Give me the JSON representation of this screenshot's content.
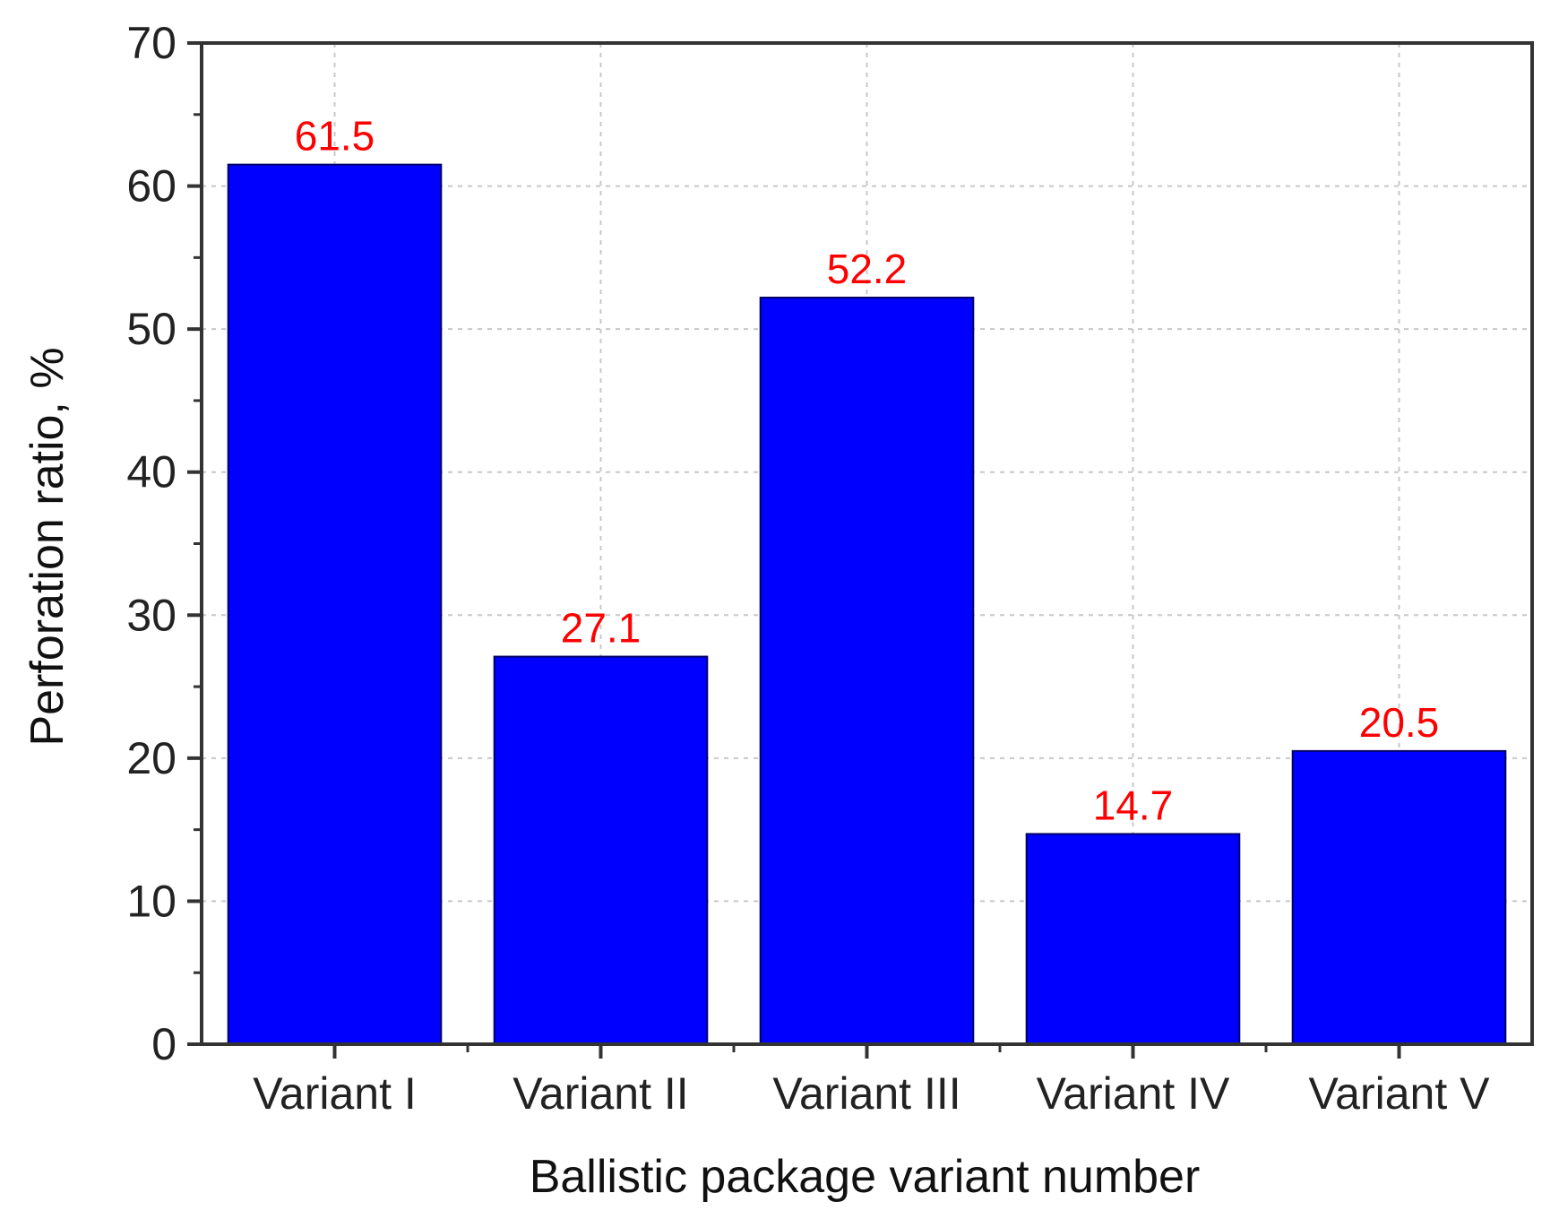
{
  "chart_data": {
    "type": "bar",
    "title": "",
    "xlabel": "Ballistic package variant number",
    "ylabel": "Perforation ratio, %",
    "categories": [
      "Variant I",
      "Variant II",
      "Variant III",
      "Variant IV",
      "Variant V"
    ],
    "values": [
      61.5,
      27.1,
      52.2,
      14.7,
      20.5
    ],
    "value_labels": [
      "61.5",
      "27.1",
      "52.2",
      "14.7",
      "20.5"
    ],
    "ylim": [
      0,
      70
    ],
    "yticks": [
      0,
      10,
      20,
      30,
      40,
      50,
      60,
      70
    ],
    "ytick_labels": [
      "0",
      "10",
      "20",
      "30",
      "40",
      "50",
      "60",
      "70"
    ],
    "grid": true,
    "legend": "none",
    "colors": {
      "bar": "#0000ff",
      "value_label": "#ff0000",
      "axis": "#333333",
      "grid": "#c8c8c8"
    }
  }
}
